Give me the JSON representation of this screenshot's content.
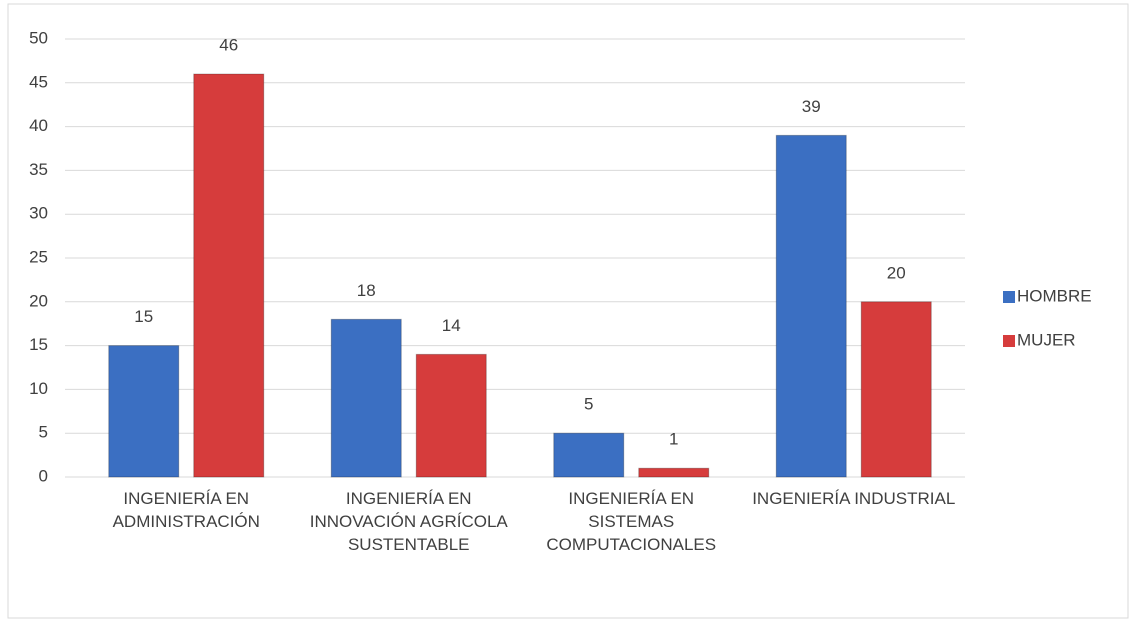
{
  "chart_data": {
    "type": "bar",
    "categories": [
      "INGENIERÍA EN ADMINISTRACIÓN",
      "INGENIERÍA EN INNOVACIÓN AGRÍCOLA SUSTENTABLE",
      "INGENIERÍA EN SISTEMAS COMPUTACIONALES",
      "INGENIERÍA INDUSTRIAL"
    ],
    "series": [
      {
        "name": "HOMBRE",
        "color": "#3b6fc2",
        "values": [
          15,
          18,
          5,
          39
        ]
      },
      {
        "name": "MUJER",
        "color": "#d63c3c",
        "values": [
          46,
          14,
          1,
          20
        ]
      }
    ],
    "ylim": [
      0,
      50
    ],
    "yticks": [
      0,
      5,
      10,
      15,
      20,
      25,
      30,
      35,
      40,
      45,
      50
    ],
    "grid": true,
    "legend": "right"
  }
}
